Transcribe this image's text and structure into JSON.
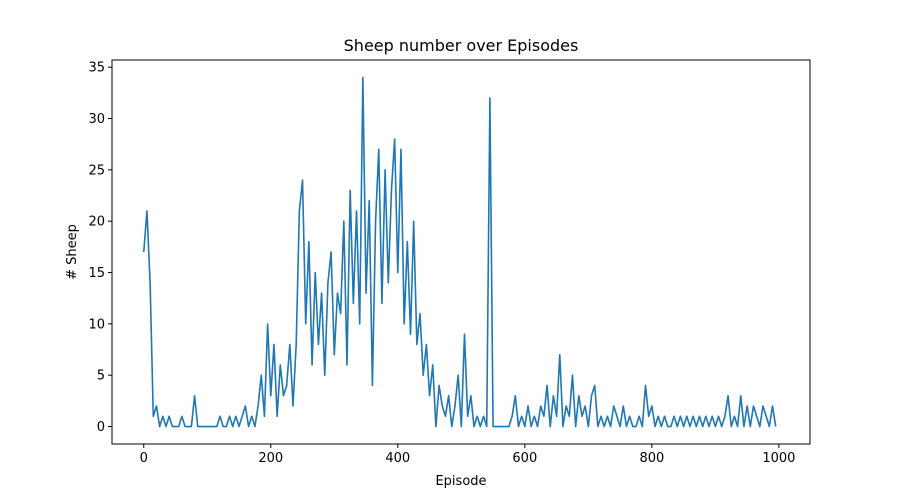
{
  "chart_data": {
    "type": "line",
    "title": "Sheep number over Episodes",
    "x_label": "Episode",
    "y_label": "# Sheep",
    "x": [
      0,
      5,
      10,
      15,
      20,
      25,
      30,
      35,
      40,
      45,
      50,
      55,
      60,
      65,
      70,
      75,
      80,
      85,
      90,
      95,
      100,
      105,
      110,
      115,
      120,
      125,
      130,
      135,
      140,
      145,
      150,
      155,
      160,
      165,
      170,
      175,
      180,
      185,
      190,
      195,
      200,
      205,
      210,
      215,
      220,
      225,
      230,
      235,
      240,
      245,
      250,
      255,
      260,
      265,
      270,
      275,
      280,
      285,
      290,
      295,
      300,
      305,
      310,
      315,
      320,
      325,
      330,
      335,
      340,
      345,
      350,
      355,
      360,
      365,
      370,
      375,
      380,
      385,
      390,
      395,
      400,
      405,
      410,
      415,
      420,
      425,
      430,
      435,
      440,
      445,
      450,
      455,
      460,
      465,
      470,
      475,
      480,
      485,
      490,
      495,
      500,
      505,
      510,
      515,
      520,
      525,
      530,
      535,
      540,
      545,
      550,
      555,
      560,
      565,
      570,
      575,
      580,
      585,
      590,
      595,
      600,
      605,
      610,
      615,
      620,
      625,
      630,
      635,
      640,
      645,
      650,
      655,
      660,
      665,
      670,
      675,
      680,
      685,
      690,
      695,
      700,
      705,
      710,
      715,
      720,
      725,
      730,
      735,
      740,
      745,
      750,
      755,
      760,
      765,
      770,
      775,
      780,
      785,
      790,
      795,
      800,
      805,
      810,
      815,
      820,
      825,
      830,
      835,
      840,
      845,
      850,
      855,
      860,
      865,
      870,
      875,
      880,
      885,
      890,
      895,
      900,
      905,
      910,
      915,
      920,
      925,
      930,
      935,
      940,
      945,
      950,
      955,
      960,
      965,
      970,
      975,
      980,
      985,
      990,
      995
    ],
    "series": [
      {
        "name": "Sheep",
        "color": "#1f77b4",
        "values": [
          17,
          21,
          14,
          1,
          2,
          0,
          1,
          0,
          1,
          0,
          0,
          0,
          1,
          0,
          0,
          0,
          3,
          0,
          0,
          0,
          0,
          0,
          0,
          0,
          1,
          0,
          0,
          1,
          0,
          1,
          0,
          1,
          2,
          0,
          1,
          0,
          2,
          5,
          1,
          10,
          3,
          8,
          1,
          6,
          3,
          4,
          8,
          2,
          8,
          21,
          24,
          10,
          18,
          6,
          15,
          8,
          13,
          5,
          14,
          17,
          7,
          13,
          11,
          20,
          6,
          23,
          12,
          21,
          10,
          34,
          13,
          22,
          4,
          20,
          27,
          12,
          25,
          14,
          23,
          28,
          15,
          27,
          10,
          18,
          9,
          20,
          8,
          11,
          5,
          8,
          3,
          6,
          0,
          4,
          2,
          1,
          3,
          0,
          2,
          5,
          0,
          9,
          1,
          3,
          0,
          1,
          0,
          1,
          0,
          32,
          0,
          0,
          0,
          0,
          0,
          0,
          1,
          3,
          0,
          1,
          0,
          2,
          0,
          1,
          0,
          2,
          1,
          4,
          0,
          3,
          1,
          7,
          0,
          2,
          1,
          5,
          0,
          3,
          1,
          2,
          0,
          3,
          4,
          0,
          1,
          0,
          1,
          0,
          2,
          1,
          0,
          2,
          0,
          1,
          0,
          0,
          1,
          0,
          4,
          1,
          2,
          0,
          1,
          0,
          1,
          0,
          0,
          1,
          0,
          1,
          0,
          1,
          0,
          1,
          0,
          1,
          0,
          1,
          0,
          1,
          0,
          1,
          0,
          1,
          3,
          0,
          1,
          0,
          3,
          0,
          2,
          0,
          2,
          1,
          0,
          2,
          1,
          0,
          2,
          0
        ]
      }
    ],
    "xlim": [
      -50,
      1049
    ],
    "ylim": [
      -1.7,
      35.7
    ],
    "xticks": [
      0,
      200,
      400,
      600,
      800,
      1000
    ],
    "yticks": [
      0,
      5,
      10,
      15,
      20,
      25,
      30,
      35
    ]
  }
}
